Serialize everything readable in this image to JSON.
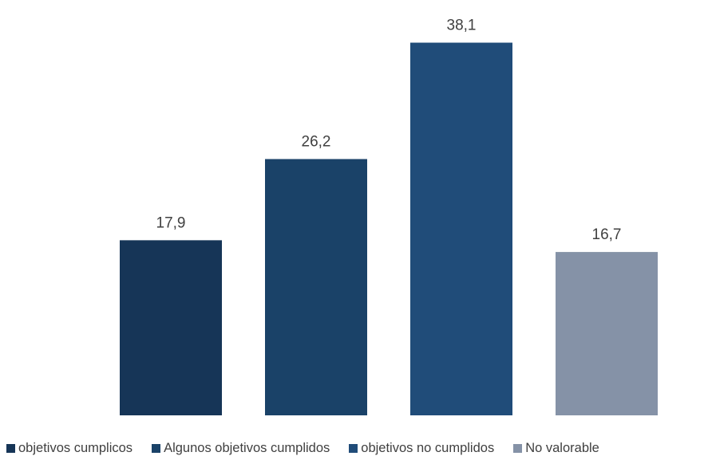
{
  "chart_data": {
    "type": "bar",
    "categories": [
      "objetivos cumplicos",
      "Algunos objetivos cumplidos",
      "objetivos no cumplidos",
      "No valorable"
    ],
    "values": [
      17.9,
      26.2,
      38.1,
      16.7
    ],
    "data_labels": [
      "17,9",
      "26,2",
      "38,1",
      "16,7"
    ],
    "colors": [
      "#163557",
      "#1a4268",
      "#204c79",
      "#8592a7"
    ],
    "ylim": [
      0,
      40
    ],
    "grid": false,
    "legend_position": "bottom",
    "title": "",
    "xlabel": "",
    "ylabel": ""
  }
}
